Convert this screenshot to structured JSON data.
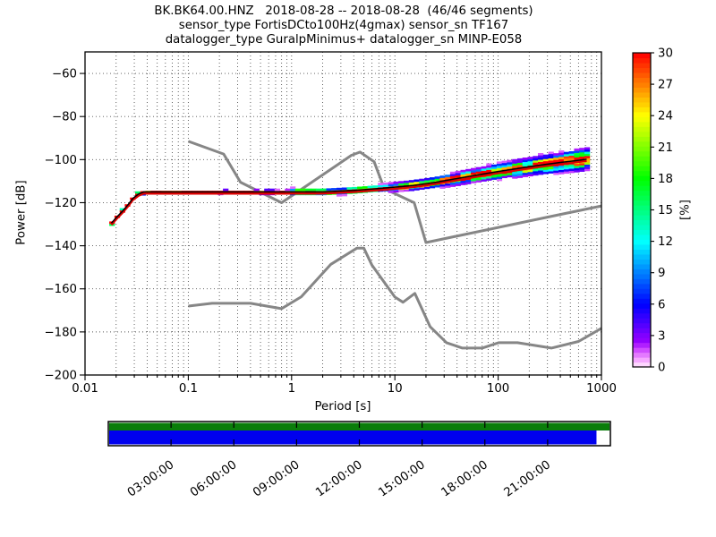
{
  "figure": {
    "title_line1": "BK.BK64.00.HNZ   2018-08-28 -- 2018-08-28  (46/46 segments)",
    "title_line2": "sensor_type FortisDCto100Hz(4gmax) sensor_sn TF167",
    "title_line3": "datalogger_type GuralpMinimus+ datalogger_sn MINP-E058",
    "background": "#ffffff"
  },
  "axes": {
    "xlabel": "Period [s]",
    "ylabel": "Power [dB]",
    "x_scale": "log",
    "xlim": [
      0.01,
      1000
    ],
    "ylim": [
      -200,
      -50
    ],
    "x_tick_labels": [
      "0.01",
      "0.1",
      "1",
      "10",
      "100",
      "1000"
    ],
    "x_tick_values": [
      0.01,
      0.1,
      1,
      10,
      100,
      1000
    ],
    "y_tick_labels": [
      "−60",
      "−80",
      "−100",
      "−120",
      "−140",
      "−160",
      "−180",
      "−200"
    ],
    "y_tick_values": [
      -60,
      -80,
      -100,
      -120,
      -140,
      -160,
      -180,
      -200
    ],
    "grid_style": "dotted"
  },
  "colorbar": {
    "label": "[%]",
    "min": 0,
    "max": 30,
    "tick_values": [
      0,
      3,
      6,
      9,
      12,
      15,
      18,
      21,
      24,
      27,
      30
    ],
    "tick_labels": [
      "0",
      "3",
      "6",
      "9",
      "12",
      "15",
      "18",
      "21",
      "24",
      "27",
      "30"
    ],
    "colormap": "pqlx white-magenta-blue-cyan-green-yellow-red"
  },
  "timeline": {
    "tick_labels": [
      "03:00:00",
      "06:00:00",
      "09:00:00",
      "12:00:00",
      "15:00:00",
      "18:00:00",
      "21:00:00"
    ],
    "tick_hours": [
      3,
      6,
      9,
      12,
      15,
      18,
      21
    ],
    "total_hours": 24,
    "row_processed_color": "#0a7d0a",
    "row_data_color": "#0000ee",
    "data_coverage_fraction": 0.974
  },
  "chart_data": {
    "type": "heatmap",
    "title": "PPSD probabilistic power spectral density, BK.BK64.00.HNZ 2018-08-28, 46/46 segments",
    "xlabel": "Period [s]",
    "ylabel": "Power [dB]",
    "zlabel": "[%]",
    "percent_cap": 30,
    "mode_curve_color": "#000000",
    "mode_companion_color": "#dd0000",
    "mode_curve": [
      [
        0.018,
        -129.5
      ],
      [
        0.02,
        -127.0
      ],
      [
        0.023,
        -124.0
      ],
      [
        0.026,
        -121.0
      ],
      [
        0.029,
        -118.0
      ],
      [
        0.033,
        -116.0
      ],
      [
        0.037,
        -115.0
      ],
      [
        2.0,
        -115.0
      ],
      [
        4.0,
        -114.3
      ],
      [
        8.0,
        -113.2
      ],
      [
        15.0,
        -112.0
      ],
      [
        25.0,
        -110.5
      ],
      [
        40.0,
        -108.8
      ],
      [
        60.0,
        -107.3
      ],
      [
        100.0,
        -105.5
      ],
      [
        160.0,
        -104.0
      ],
      [
        250.0,
        -102.6
      ],
      [
        400.0,
        -101.3
      ],
      [
        600.0,
        -100.3
      ],
      [
        720.0,
        -99.8
      ]
    ],
    "histogram": {
      "period_log_range": [
        -1.74,
        2.86
      ],
      "bin_step_log": 0.05,
      "db_cell_height": 1.0,
      "spread_db_short_period": 0.5,
      "spread_db_long_period": 5.0
    },
    "noise_models": {
      "color": "#868686",
      "nhnm": [
        [
          0.1,
          -91.5
        ],
        [
          0.22,
          -97.4
        ],
        [
          0.32,
          -110.5
        ],
        [
          0.8,
          -120.0
        ],
        [
          3.8,
          -98.0
        ],
        [
          4.6,
          -96.5
        ],
        [
          6.3,
          -101.0
        ],
        [
          7.9,
          -113.5
        ],
        [
          15.4,
          -120.0
        ],
        [
          20.0,
          -138.5
        ],
        [
          354.8,
          -126.0
        ],
        [
          1000.0,
          -121.5
        ]
      ],
      "nlnm": [
        [
          0.1,
          -168.0
        ],
        [
          0.17,
          -166.7
        ],
        [
          0.4,
          -166.7
        ],
        [
          0.8,
          -169.2
        ],
        [
          1.24,
          -163.7
        ],
        [
          2.4,
          -148.6
        ],
        [
          4.3,
          -141.1
        ],
        [
          5.0,
          -141.1
        ],
        [
          6.0,
          -149.0
        ],
        [
          10.0,
          -163.8
        ],
        [
          12.0,
          -166.2
        ],
        [
          15.6,
          -162.1
        ],
        [
          21.9,
          -177.5
        ],
        [
          31.6,
          -185.0
        ],
        [
          45.0,
          -187.5
        ],
        [
          70.0,
          -187.5
        ],
        [
          101.0,
          -185.0
        ],
        [
          154.0,
          -185.0
        ],
        [
          328.0,
          -187.5
        ],
        [
          600.0,
          -184.4
        ],
        [
          1000.0,
          -178.3
        ]
      ]
    }
  }
}
